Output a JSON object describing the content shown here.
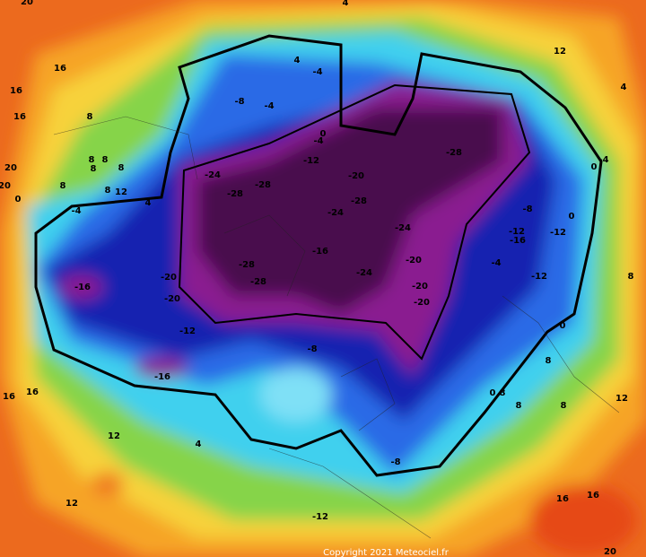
{
  "labels": [
    20,
    4,
    16,
    16,
    16,
    8,
    20,
    20,
    0,
    8,
    8,
    8,
    8,
    8,
    12,
    8,
    4,
    -4,
    4,
    -4,
    -8,
    -4,
    -4,
    0,
    -12,
    -20,
    -28,
    -24,
    -28,
    -28,
    -28,
    -24,
    -24,
    12,
    4,
    0,
    -4,
    -8,
    0,
    -12,
    -16,
    -12,
    -4,
    -12,
    8,
    -28,
    -28,
    -16,
    -24,
    -20,
    -20,
    -20,
    -16,
    -20,
    -20,
    -12,
    -8,
    -16,
    0,
    16,
    16,
    12,
    4,
    8,
    0,
    8,
    8,
    8,
    12,
    -8,
    12,
    -12,
    16,
    16,
    20
  ],
  "copyright": "Copyright 2021 Meteociel.fr"
}
